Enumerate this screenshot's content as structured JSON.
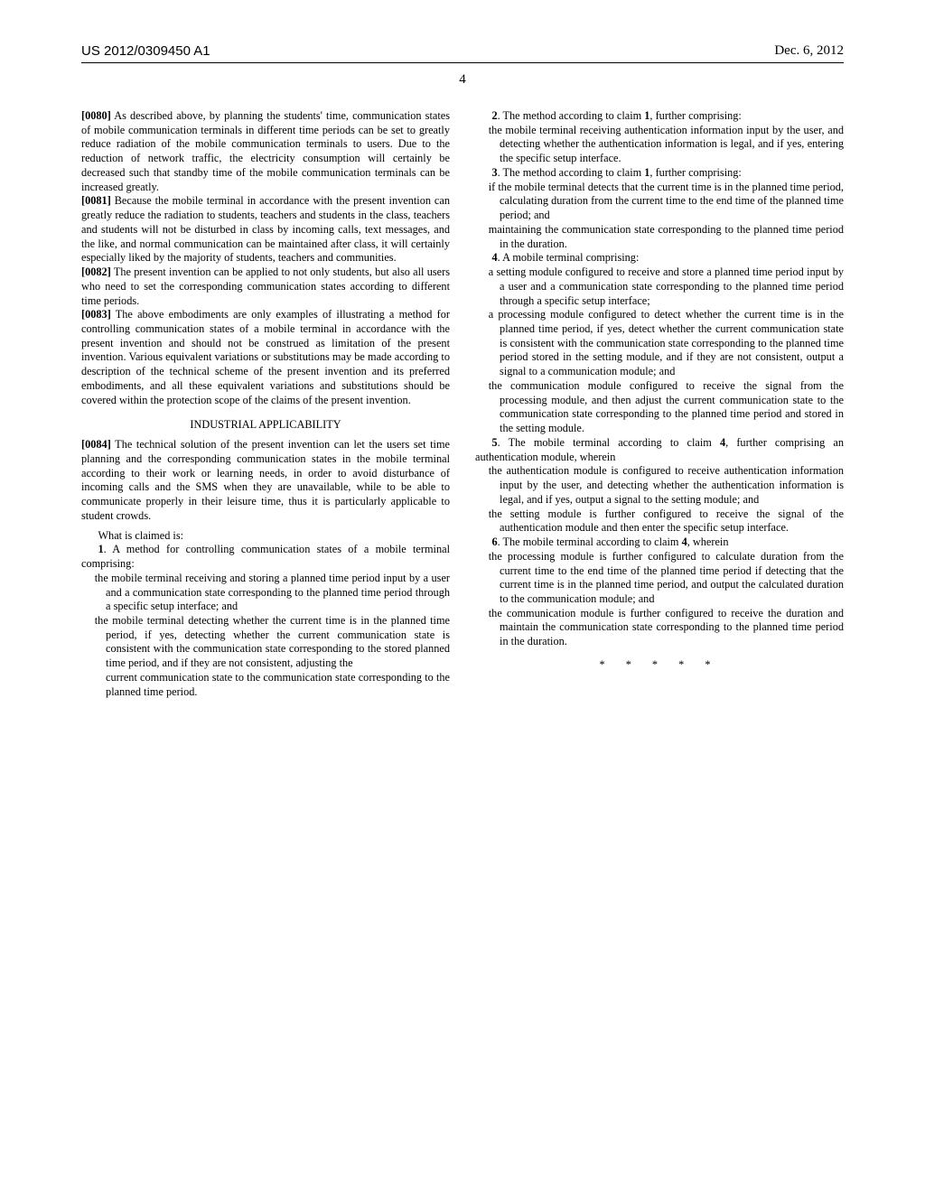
{
  "header": {
    "pub_number": "US 2012/0309450 A1",
    "pub_date": "Dec. 6, 2012",
    "page_number": "4"
  },
  "left_column": {
    "p0080": {
      "num": "[0080]",
      "text": " As described above, by planning the students' time, communication states of mobile communication terminals in different time periods can be set to greatly reduce radiation of the mobile communication terminals to users. Due to the reduction of network traffic, the electricity consumption will certainly be decreased such that standby time of the mobile communication terminals can be increased greatly."
    },
    "p0081": {
      "num": "[0081]",
      "text": " Because the mobile terminal in accordance with the present invention can greatly reduce the radiation to students, teachers and students in the class, teachers and students will not be disturbed in class by incoming calls, text messages, and the like, and normal communication can be maintained after class, it will certainly especially liked by the majority of students, teachers and communities."
    },
    "p0082": {
      "num": "[0082]",
      "text": " The present invention can be applied to not only students, but also all users who need to set the corresponding communication states according to different time periods."
    },
    "p0083": {
      "num": "[0083]",
      "text": " The above embodiments are only examples of illustrating a method for controlling communication states of a mobile terminal in accordance with the present invention and should not be construed as limitation of the present invention. Various equivalent variations or substitutions may be made according to description of the technical scheme of the present invention and its preferred embodiments, and all these equivalent variations and substitutions should be covered within the protection scope of the claims of the present invention."
    },
    "industrial_title": "INDUSTRIAL APPLICABILITY",
    "p0084": {
      "num": "[0084]",
      "text": " The technical solution of the present invention can let the users set time planning and the corresponding communication states in the mobile terminal according to their work or learning needs, in order to avoid disturbance of incoming calls and the SMS when they are unavailable, while to be able to communicate properly in their leisure time, thus it is particularly applicable to student crowds."
    },
    "claims_intro": "What is claimed is:",
    "claim1": {
      "num": "1",
      "text": ". A method for controlling communication states of a mobile terminal comprising:",
      "sub1": "the mobile terminal receiving and storing a planned time period input by a user and a communication state corresponding to the planned time period through a specific setup interface; and",
      "sub2": "the mobile terminal detecting whether the current time is in the planned time period, if yes, detecting whether the current communication state is consistent with the communication state corresponding to the stored planned time period, and if they are not consistent, adjusting the"
    }
  },
  "right_column": {
    "claim1_cont": "current communication state to the communication state corresponding to the planned time period.",
    "claim2": {
      "num": "2",
      "head": ". The method according to claim ",
      "ref": "1",
      "tail": ", further comprising:",
      "sub1": "the mobile terminal receiving authentication information input by the user, and detecting whether the authentication information is legal, and if yes, entering the specific setup interface."
    },
    "claim3": {
      "num": "3",
      "head": ". The method according to claim ",
      "ref": "1",
      "tail": ", further comprising:",
      "sub1": "if the mobile terminal detects that the current time is in the planned time period, calculating duration from the current time to the end time of the planned time period; and",
      "sub2": "maintaining the communication state corresponding to the planned time period in the duration."
    },
    "claim4": {
      "num": "4",
      "text": ". A mobile terminal comprising:",
      "sub1": "a setting module configured to receive and store a planned time period input by a user and a communication state corresponding to the planned time period through a specific setup interface;",
      "sub2": "a processing module configured to detect whether the current time is in the planned time period, if yes, detect whether the current communication state is consistent with the communication state corresponding to the planned time period stored in the setting module, and if they are not consistent, output a signal to a communication module; and",
      "sub3": "the communication module configured to receive the signal from the processing module, and then adjust the current communication state to the communication state corresponding to the planned time period and stored in the setting module."
    },
    "claim5": {
      "num": "5",
      "head": ". The mobile terminal according to claim ",
      "ref": "4",
      "tail": ", further comprising an authentication module, wherein",
      "sub1": "the authentication module is configured to receive authentication information input by the user, and detecting whether the authentication information is legal, and if yes, output a signal to the setting module; and",
      "sub2": "the setting module is further configured to receive the signal of the authentication module and then enter the specific setup interface."
    },
    "claim6": {
      "num": "6",
      "head": ". The mobile terminal according to claim ",
      "ref": "4",
      "tail": ", wherein",
      "sub1": "the processing module is further configured to calculate duration from the current time to the end time of the planned time period if detecting that the current time is in the planned time period, and output the calculated duration to the communication module; and",
      "sub2": "the communication module is further configured to receive the duration and maintain the communication state corresponding to the planned time period in the duration."
    },
    "endmark": "* * * * *"
  }
}
